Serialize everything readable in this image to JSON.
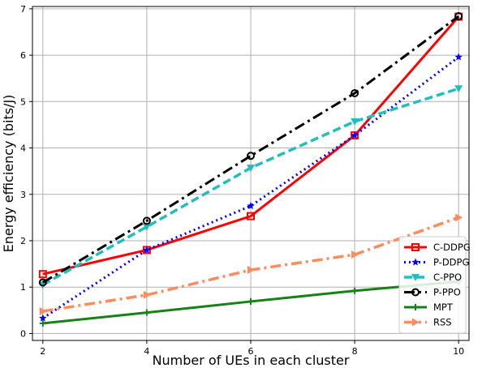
{
  "chart_data": {
    "type": "line",
    "title": "",
    "xlabel": "Number of UEs in each cluster",
    "ylabel": "Energy efficiency (bits/J)",
    "x": [
      2,
      4,
      6,
      8,
      10
    ],
    "xlim": [
      1.8,
      10.2
    ],
    "ylim": [
      -0.15,
      7.05
    ],
    "xticks": [
      2,
      4,
      6,
      8,
      10
    ],
    "yticks": [
      0,
      1,
      2,
      3,
      4,
      5,
      6,
      7
    ],
    "grid": true,
    "legend_position": "lower-right",
    "series": [
      {
        "name": "C-DDPG",
        "values": [
          1.28,
          1.8,
          2.53,
          4.27,
          6.83
        ],
        "color": "#ff0000",
        "dash": "solid",
        "marker": "square",
        "width": 3
      },
      {
        "name": "P-DDPG",
        "values": [
          0.33,
          1.8,
          2.75,
          4.27,
          5.96
        ],
        "color": "#0000ff",
        "dash": "dotted",
        "marker": "star",
        "width": 3
      },
      {
        "name": "C-PPO",
        "values": [
          1.05,
          2.3,
          3.57,
          4.57,
          5.28
        ],
        "color": "#1fbfbf",
        "dash": "dashed",
        "marker": "triangle-down",
        "width": 3.5
      },
      {
        "name": "P-PPO",
        "values": [
          1.1,
          2.43,
          3.83,
          5.18,
          6.84
        ],
        "color": "#000000",
        "dash": "dashdot",
        "marker": "circle",
        "width": 3
      },
      {
        "name": "MPT",
        "values": [
          0.22,
          0.45,
          0.69,
          0.92,
          1.12
        ],
        "color": "#148214",
        "dash": "solid",
        "marker": "plus",
        "width": 3
      },
      {
        "name": "RSS",
        "values": [
          0.48,
          0.83,
          1.37,
          1.7,
          2.5
        ],
        "color": "#ff8c5a",
        "dash": "dashdot",
        "marker": "triangle-right",
        "width": 3.5
      }
    ]
  }
}
